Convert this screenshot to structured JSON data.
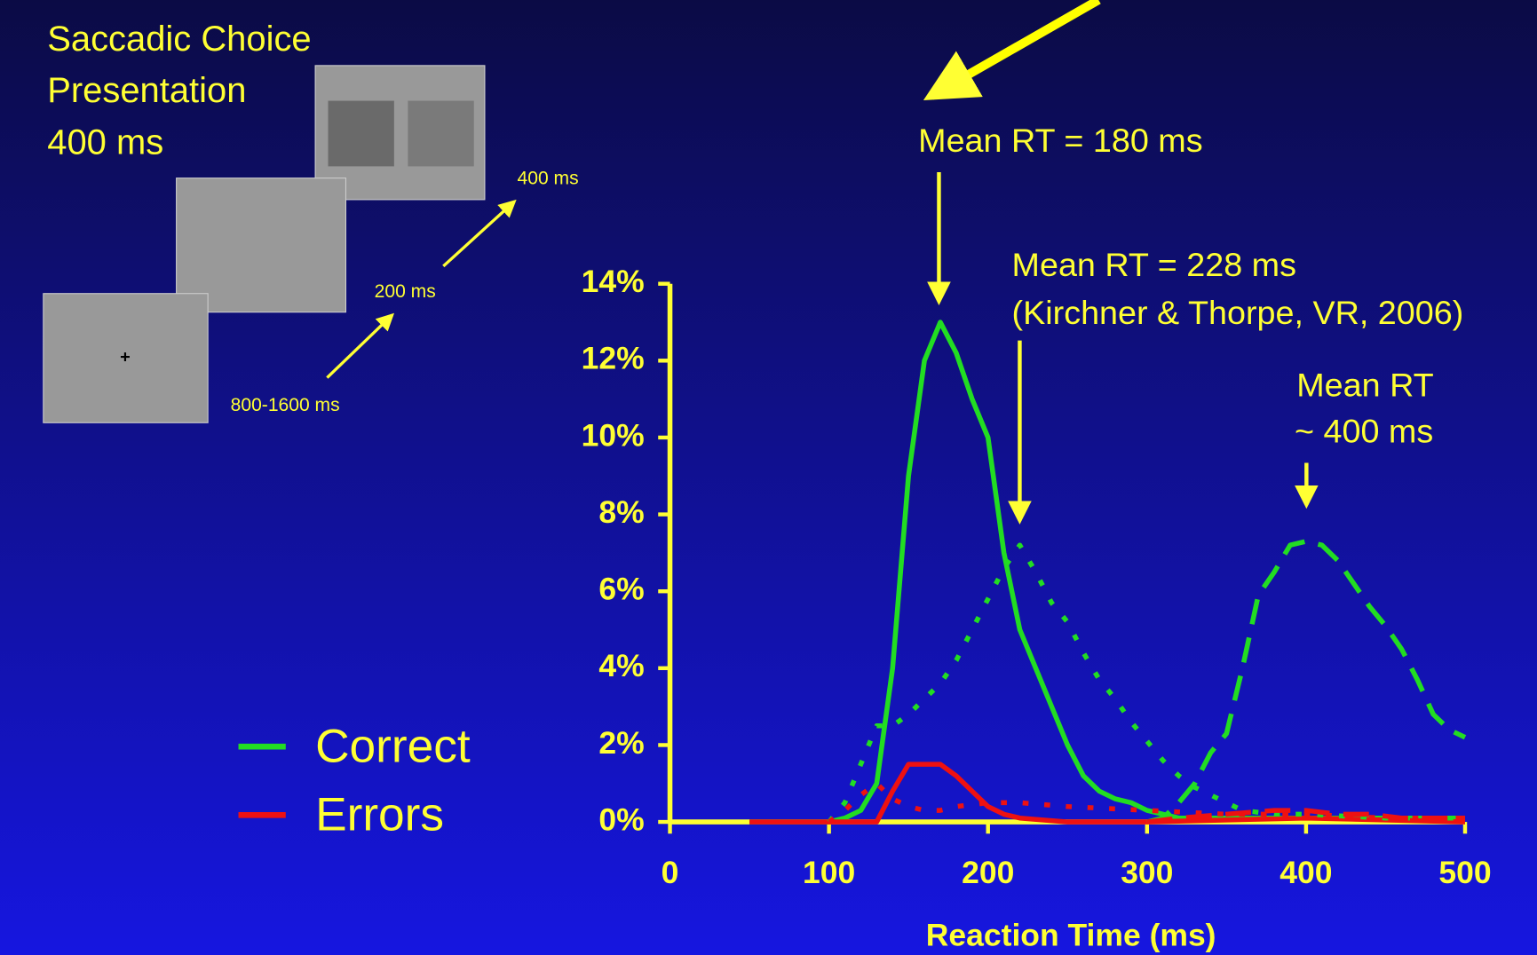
{
  "panel": {
    "title_lines": [
      "Saccadic Choice",
      "Presentation",
      "400 ms"
    ],
    "fixation": "+",
    "timings": [
      "800-1600 ms",
      "200 ms",
      "400 ms"
    ]
  },
  "chart_data": {
    "type": "line",
    "xlabel": "Reaction Time (ms)",
    "xlim": [
      0,
      500
    ],
    "xticks": [
      0,
      100,
      200,
      300,
      400,
      500
    ],
    "ylim": [
      0,
      14
    ],
    "yticks": [
      {
        "value": 0,
        "label": "0%"
      },
      {
        "value": 2,
        "label": "2%"
      },
      {
        "value": 4,
        "label": "4%"
      },
      {
        "value": 6,
        "label": "6%"
      },
      {
        "value": 8,
        "label": "8%"
      },
      {
        "value": 10,
        "label": "10%"
      },
      {
        "value": 12,
        "label": "12%"
      },
      {
        "value": 14,
        "label": "14%"
      }
    ],
    "annotations": [
      "Mean RT = 180 ms",
      "Mean RT = 228 ms",
      "(Kirchner & Thorpe, VR, 2006)",
      "Mean RT",
      "~ 400 ms"
    ],
    "legend": [
      {
        "label": "Correct",
        "color": "#22dd22"
      },
      {
        "label": "Errors",
        "color": "#ee1111"
      }
    ],
    "series": [
      {
        "color": "#22dd22",
        "style": "solid",
        "x": [
          50,
          100,
          110,
          120,
          130,
          140,
          150,
          160,
          170,
          180,
          190,
          200,
          210,
          220,
          230,
          240,
          250,
          260,
          270,
          280,
          290,
          300,
          320,
          350,
          400,
          450,
          500
        ],
        "values": [
          0,
          0,
          0.1,
          0.3,
          1,
          4,
          9,
          12,
          13,
          12.2,
          11,
          10,
          7,
          5,
          4,
          3,
          2,
          1.2,
          0.8,
          0.6,
          0.5,
          0.3,
          0.1,
          0.1,
          0.1,
          0.1,
          0.1
        ]
      },
      {
        "color": "#ee1111",
        "style": "solid",
        "x": [
          50,
          130,
          140,
          150,
          160,
          170,
          180,
          190,
          200,
          210,
          220,
          250,
          300,
          400,
          500
        ],
        "values": [
          0,
          0,
          0.8,
          1.5,
          1.5,
          1.5,
          1.2,
          0.8,
          0.4,
          0.2,
          0.1,
          0,
          0,
          0.1,
          0
        ]
      },
      {
        "color": "#22dd22",
        "style": "dotted",
        "x": [
          100,
          110,
          120,
          130,
          140,
          150,
          160,
          170,
          180,
          190,
          200,
          210,
          220,
          230,
          240,
          250,
          260,
          270,
          280,
          290,
          300,
          310,
          320,
          330,
          340,
          350,
          360,
          380,
          400,
          450,
          500
        ],
        "values": [
          0,
          0.5,
          1.5,
          2.5,
          2.5,
          2.8,
          3.2,
          3.6,
          4.2,
          5,
          5.8,
          6.6,
          7.2,
          6.5,
          5.7,
          5.2,
          4.4,
          3.7,
          3.2,
          2.6,
          2.1,
          1.6,
          1.2,
          0.9,
          0.7,
          0.5,
          0.3,
          0.2,
          0.2,
          0.1,
          0.1
        ]
      },
      {
        "color": "#ee1111",
        "style": "dotted",
        "x": [
          100,
          110,
          120,
          130,
          140,
          150,
          160,
          170,
          180,
          200,
          220,
          250,
          300,
          350,
          400,
          450,
          500
        ],
        "values": [
          0,
          0.3,
          0.7,
          1,
          0.6,
          0.4,
          0.3,
          0.3,
          0.4,
          0.5,
          0.5,
          0.4,
          0.3,
          0.2,
          0.2,
          0.1,
          0.1
        ]
      },
      {
        "color": "#22dd22",
        "style": "dashed",
        "x": [
          300,
          310,
          320,
          330,
          340,
          350,
          360,
          370,
          380,
          390,
          400,
          410,
          420,
          430,
          440,
          450,
          460,
          470,
          480,
          490,
          500
        ],
        "values": [
          0,
          0.1,
          0.5,
          1,
          1.8,
          2.3,
          4,
          5.9,
          6.5,
          7.2,
          7.3,
          7.2,
          6.8,
          6.2,
          5.6,
          5.1,
          4.5,
          3.7,
          2.8,
          2.4,
          2.2
        ]
      },
      {
        "color": "#ee1111",
        "style": "dashed",
        "x": [
          300,
          320,
          350,
          380,
          400,
          420,
          440,
          460,
          500
        ],
        "values": [
          0,
          0.1,
          0.2,
          0.3,
          0.3,
          0.2,
          0.2,
          0.1,
          0.1
        ]
      }
    ]
  }
}
